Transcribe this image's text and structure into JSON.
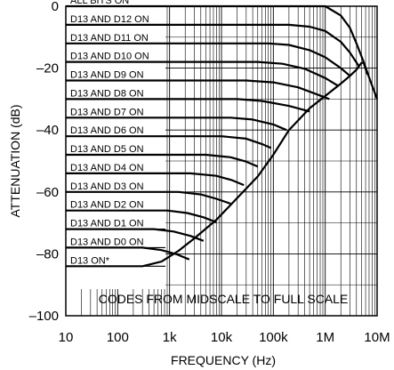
{
  "chart_data": {
    "type": "line",
    "title": "",
    "xlabel": "FREQUENCY (Hz)",
    "ylabel": "ATTENUATION (dB)",
    "x_scale": "log",
    "xlim": [
      10,
      10000000
    ],
    "ylim": [
      -100,
      0
    ],
    "x_ticks": [
      {
        "value": 10,
        "label": "10"
      },
      {
        "value": 100,
        "label": "100"
      },
      {
        "value": 1000,
        "label": "1k"
      },
      {
        "value": 10000,
        "label": "10k"
      },
      {
        "value": 100000,
        "label": "100k"
      },
      {
        "value": 1000000,
        "label": "1M"
      },
      {
        "value": 10000000,
        "label": "10M"
      }
    ],
    "y_ticks": [
      {
        "value": 0,
        "label": "0"
      },
      {
        "value": -20,
        "label": "–20"
      },
      {
        "value": -40,
        "label": "–40"
      },
      {
        "value": -60,
        "label": "–60"
      },
      {
        "value": -80,
        "label": "–80"
      },
      {
        "value": -100,
        "label": "–100"
      }
    ],
    "grid": true,
    "annotation": "CODES FROM MIDSCALE TO FULL SCALE",
    "series": [
      {
        "name": "ALL BITS ON",
        "level": 0,
        "points": [
          [
            10,
            0
          ],
          [
            1000000,
            0
          ],
          [
            2000000,
            -3
          ],
          [
            3000000,
            -7
          ],
          [
            4000000,
            -12
          ],
          [
            5500000,
            -18
          ],
          [
            7000000,
            -23
          ],
          [
            10000000,
            -30
          ]
        ]
      },
      {
        "name": "D13 AND D12 ON",
        "level": -6,
        "points": [
          [
            10,
            -6
          ],
          [
            200000,
            -6
          ],
          [
            500000,
            -6.6
          ],
          [
            1000000,
            -8
          ],
          [
            2000000,
            -11.5
          ],
          [
            3000000,
            -15
          ],
          [
            4500000,
            -19.5
          ]
        ]
      },
      {
        "name": "D13 AND D11 ON",
        "level": -12,
        "points": [
          [
            10,
            -12
          ],
          [
            80000,
            -12
          ],
          [
            200000,
            -12.5
          ],
          [
            500000,
            -14.2
          ],
          [
            1000000,
            -16.5
          ],
          [
            2000000,
            -20
          ],
          [
            3000000,
            -22.5
          ]
        ]
      },
      {
        "name": "D13 AND D10 ON",
        "level": -18,
        "points": [
          [
            10,
            -18
          ],
          [
            50000,
            -18
          ],
          [
            150000,
            -18.6
          ],
          [
            400000,
            -20.2
          ],
          [
            1000000,
            -23.2
          ],
          [
            1800000,
            -25.8
          ]
        ]
      },
      {
        "name": "D13 AND D9 ON",
        "level": -24,
        "points": [
          [
            10,
            -24
          ],
          [
            30000,
            -24
          ],
          [
            100000,
            -24.6
          ],
          [
            300000,
            -26.2
          ],
          [
            700000,
            -28.5
          ],
          [
            1200000,
            -30
          ]
        ]
      },
      {
        "name": "D13 AND D8 ON",
        "level": -30,
        "points": [
          [
            10,
            -30
          ],
          [
            20000,
            -30
          ],
          [
            60000,
            -30.6
          ],
          [
            200000,
            -32.2
          ],
          [
            500000,
            -34
          ]
        ]
      },
      {
        "name": "D13 AND D7 ON",
        "level": -36,
        "points": [
          [
            10,
            -36
          ],
          [
            15000,
            -36
          ],
          [
            40000,
            -36.6
          ],
          [
            100000,
            -38.2
          ],
          [
            180000,
            -40
          ]
        ]
      },
      {
        "name": "D13 AND D6 ON",
        "level": -42,
        "points": [
          [
            10,
            -42
          ],
          [
            10000,
            -42
          ],
          [
            30000,
            -42.8
          ],
          [
            60000,
            -44.5
          ],
          [
            90000,
            -45.8
          ]
        ]
      },
      {
        "name": "D13 AND D5 ON",
        "level": -48,
        "points": [
          [
            10,
            -48
          ],
          [
            5000,
            -48
          ],
          [
            15000,
            -48.8
          ],
          [
            30000,
            -50.2
          ],
          [
            50000,
            -51.8
          ]
        ]
      },
      {
        "name": "D13 AND D4 ON",
        "level": -54,
        "points": [
          [
            10,
            -54
          ],
          [
            2500,
            -54
          ],
          [
            8000,
            -54.8
          ],
          [
            16000,
            -56.2
          ],
          [
            27000,
            -57.8
          ]
        ]
      },
      {
        "name": "D13 AND D3 ON",
        "level": -60,
        "points": [
          [
            10,
            -60
          ],
          [
            1500,
            -60
          ],
          [
            4000,
            -60.8
          ],
          [
            8000,
            -62.2
          ],
          [
            15000,
            -63.8
          ]
        ]
      },
      {
        "name": "D13 AND D2  ON",
        "level": -66,
        "points": [
          [
            10,
            -66
          ],
          [
            900,
            -66
          ],
          [
            2200,
            -66.8
          ],
          [
            4500,
            -68.2
          ],
          [
            8000,
            -69.8
          ]
        ]
      },
      {
        "name": "D13 AND D1  ON",
        "level": -72,
        "points": [
          [
            10,
            -72
          ],
          [
            500,
            -72
          ],
          [
            1200,
            -72.8
          ],
          [
            2500,
            -74.2
          ],
          [
            4500,
            -75.8
          ]
        ]
      },
      {
        "name": "D13 AND D0  ON",
        "level": -78,
        "points": [
          [
            10,
            -78
          ],
          [
            300,
            -78
          ],
          [
            700,
            -78.8
          ],
          [
            1400,
            -80.2
          ],
          [
            2400,
            -81.8
          ]
        ]
      },
      {
        "name": "D13 ON*",
        "level": -84,
        "points": [
          [
            10,
            -84
          ],
          [
            150,
            -84
          ],
          [
            300,
            -84
          ],
          [
            700,
            -82.5
          ],
          [
            1500,
            -79
          ],
          [
            3000,
            -75
          ],
          [
            8000,
            -69
          ],
          [
            20000,
            -62
          ],
          [
            50000,
            -55
          ],
          [
            100000,
            -48
          ],
          [
            200000,
            -40
          ],
          [
            500000,
            -33
          ],
          [
            1000000,
            -29
          ],
          [
            2000000,
            -25
          ],
          [
            3000000,
            -22.5
          ],
          [
            4000000,
            -20.5
          ],
          [
            5000000,
            -18.3
          ],
          [
            5500000,
            -18.3
          ],
          [
            6500000,
            -22
          ],
          [
            8000,
            -69
          ]
        ]
      }
    ]
  }
}
